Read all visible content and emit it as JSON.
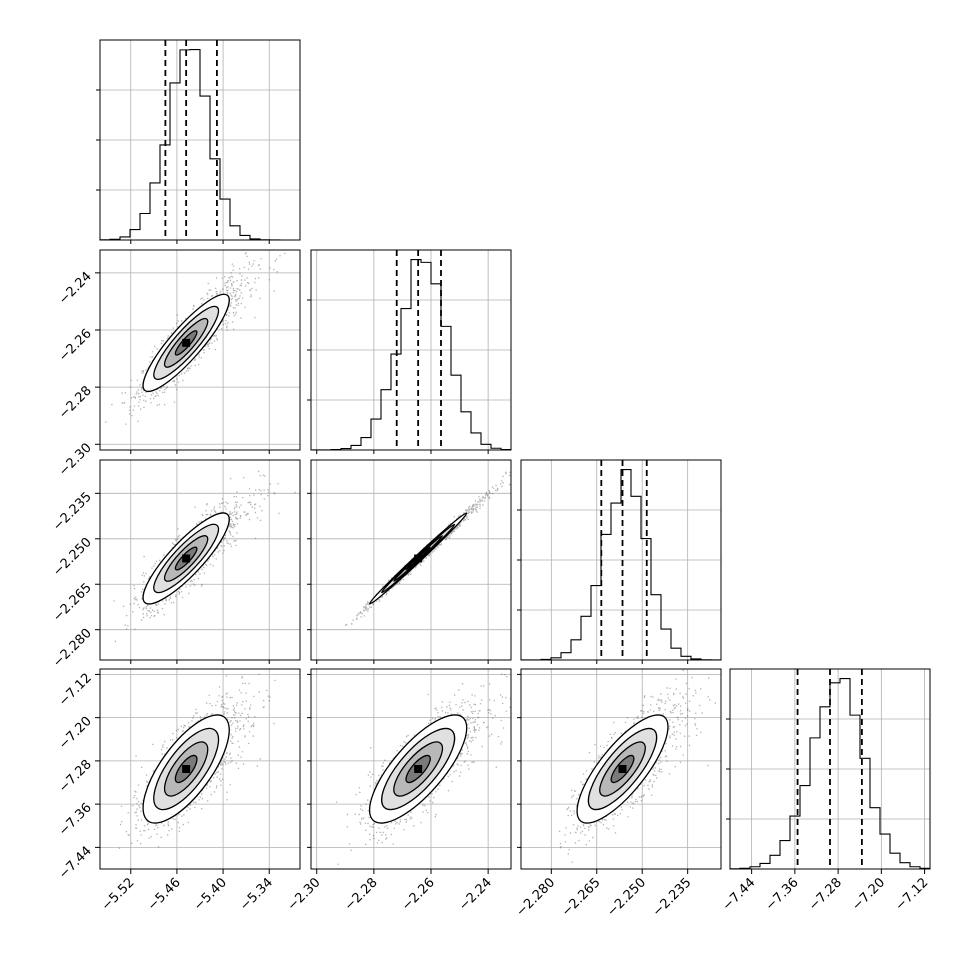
{
  "chart_data": {
    "type": "corner",
    "grid": true,
    "colors": {
      "line": "#000000",
      "scatter": "#555555",
      "grid": "#b0b0b0",
      "background": "#ffffff"
    },
    "parameters": [
      {
        "range": [
          -5.56,
          -5.3
        ],
        "ticks": [
          -5.52,
          -5.46,
          -5.4,
          -5.34
        ],
        "tick_labels": [
          "−5.52",
          "−5.46",
          "−5.40",
          "−5.34"
        ],
        "quantiles": [
          -5.475,
          -5.448,
          -5.408
        ],
        "hist_peak": -5.45,
        "hist_sigma": 0.028
      },
      {
        "range": [
          -2.302,
          -2.232
        ],
        "ticks": [
          -2.3,
          -2.28,
          -2.26,
          -2.24
        ],
        "tick_labels": [
          "−2.30",
          "−2.28",
          "−2.26",
          "−2.24"
        ],
        "quantiles": [
          -2.272,
          -2.2645,
          -2.2565
        ],
        "hist_peak": -2.264,
        "hist_sigma": 0.0085
      },
      {
        "range": [
          -2.29,
          -2.224
        ],
        "ticks": [
          -2.28,
          -2.265,
          -2.25,
          -2.235
        ],
        "tick_labels": [
          "−2.280",
          "−2.265",
          "−2.250",
          "−2.235"
        ],
        "quantiles": [
          -2.2635,
          -2.2565,
          -2.2485
        ],
        "hist_peak": -2.257,
        "hist_sigma": 0.0075
      },
      {
        "range": [
          -7.48,
          -7.11
        ],
        "ticks": [
          -7.44,
          -7.36,
          -7.28,
          -7.2,
          -7.12
        ],
        "tick_labels": [
          "−7.44",
          "−7.36",
          "−7.28",
          "−7.20",
          "−7.12"
        ],
        "quantiles": [
          -7.355,
          -7.295,
          -7.236
        ],
        "hist_peak": -7.29,
        "hist_sigma": 0.05
      }
    ],
    "correlations": [
      {
        "x": 0,
        "y": 1,
        "rho": 0.88
      },
      {
        "x": 0,
        "y": 2,
        "rho": 0.86
      },
      {
        "x": 1,
        "y": 2,
        "rho": 0.995
      },
      {
        "x": 0,
        "y": 3,
        "rho": 0.72
      },
      {
        "x": 1,
        "y": 3,
        "rho": 0.76
      },
      {
        "x": 2,
        "y": 3,
        "rho": 0.78
      }
    ]
  }
}
